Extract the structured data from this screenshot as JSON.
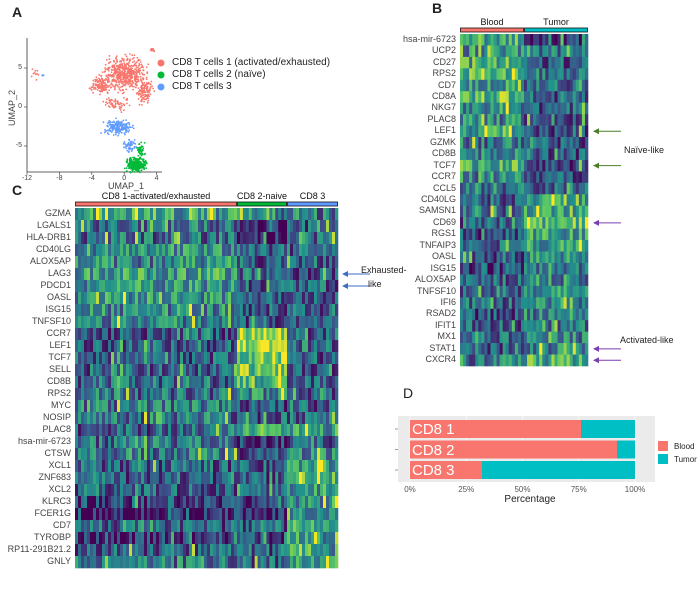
{
  "panels": {
    "a": "A",
    "b": "B",
    "c": "C",
    "d": "D"
  },
  "chart_data": [
    {
      "type": "scatter",
      "panel": "A",
      "xlabel": "UMAP_1",
      "ylabel": "UMAP_2",
      "xticks": [
        -12,
        -8,
        -4,
        0,
        4
      ],
      "yticks": [
        5,
        0,
        -5
      ],
      "xlim": [
        -12,
        5
      ],
      "ylim": [
        -8.5,
        8.5
      ],
      "legend": [
        "CD8 T cells 1 (activated/exhausted)",
        "CD8 T cells 2 (naïve)",
        "CD8 T cells 3"
      ],
      "legend_position": "right",
      "colors": [
        "#f8766d",
        "#00ba38",
        "#619cff"
      ],
      "clusters": [
        {
          "name": "CD8 T cells 1 (activated/exhausted)",
          "blobs": [
            [
              0,
              4.2,
              2.4,
              2.0,
              520
            ],
            [
              -3,
              2.8,
              1.1,
              0.9,
              120
            ],
            [
              2.5,
              2.0,
              0.9,
              1.6,
              120
            ],
            [
              -1,
              0.5,
              1.5,
              0.9,
              60
            ],
            [
              -11,
              4.3,
              0.4,
              0.6,
              10
            ],
            [
              3.5,
              7.3,
              0.3,
              0.3,
              12
            ]
          ]
        },
        {
          "name": "CD8 T cells 2 (naïve)",
          "blobs": [
            [
              1.5,
              -7.4,
              1.1,
              0.8,
              300
            ],
            [
              2.0,
              -5.5,
              0.5,
              0.9,
              50
            ]
          ]
        },
        {
          "name": "CD8 T cells 3",
          "blobs": [
            [
              -0.7,
              -2.6,
              1.6,
              0.9,
              200
            ],
            [
              0.7,
              -5.0,
              0.8,
              0.7,
              60
            ],
            [
              -10.1,
              4.1,
              0.2,
              0.2,
              3
            ]
          ]
        }
      ]
    },
    {
      "type": "heatmap",
      "panel": "B",
      "groups": [
        {
          "name": "Blood",
          "color": "#f8766d"
        },
        {
          "name": "Tumor",
          "color": "#00bfc4"
        }
      ],
      "genes": [
        "hsa-mir-6723",
        "UCP2",
        "CD27",
        "RPS2",
        "CD7",
        "CD8A",
        "NKG7",
        "PLAC8",
        "LEF1",
        "GZMK",
        "CD8B",
        "TCF7",
        "CCR7",
        "CCL5",
        "CD40LG",
        "SAMSN1",
        "CD69",
        "RGS1",
        "TNFAIP3",
        "OASL",
        "ISG15",
        "ALOX5AP",
        "TNFSF10",
        "IFI6",
        "RSAD2",
        "IFIT1",
        "MX1",
        "STAT1",
        "CXCR4"
      ],
      "levels": [
        [
          0.6,
          0.15
        ],
        [
          0.45,
          0.35
        ],
        [
          0.6,
          0.3
        ],
        [
          0.7,
          0.4
        ],
        [
          0.5,
          0.35
        ],
        [
          0.7,
          0.3
        ],
        [
          0.5,
          0.3
        ],
        [
          0.45,
          0.25
        ],
        [
          0.55,
          0.25
        ],
        [
          0.4,
          0.3
        ],
        [
          0.45,
          0.3
        ],
        [
          0.6,
          0.25
        ],
        [
          0.45,
          0.25
        ],
        [
          0.4,
          0.35
        ],
        [
          0.3,
          0.6
        ],
        [
          0.35,
          0.5
        ],
        [
          0.3,
          0.7
        ],
        [
          0.25,
          0.55
        ],
        [
          0.3,
          0.55
        ],
        [
          0.3,
          0.5
        ],
        [
          0.25,
          0.45
        ],
        [
          0.3,
          0.45
        ],
        [
          0.3,
          0.5
        ],
        [
          0.35,
          0.45
        ],
        [
          0.25,
          0.45
        ],
        [
          0.3,
          0.4
        ],
        [
          0.3,
          0.45
        ],
        [
          0.3,
          0.45
        ],
        [
          0.4,
          0.6
        ]
      ],
      "arrows": [
        {
          "gene": "LEF1",
          "color": "#4a7f2a"
        },
        {
          "gene": "TCF7",
          "color": "#4a7f2a"
        },
        {
          "gene": "CD69",
          "color": "#7a3fb0"
        },
        {
          "gene": "STAT1",
          "color": "#7a3fb0"
        },
        {
          "gene": "CXCR4",
          "color": "#7a3fb0"
        }
      ],
      "annotations": [
        "Naïve-like",
        "Activated-like"
      ]
    },
    {
      "type": "heatmap",
      "panel": "C",
      "groups": [
        {
          "name": "CD8 1-activated/exhausted",
          "color": "#f8766d"
        },
        {
          "name": "CD8 2-naive",
          "color": "#00ba38"
        },
        {
          "name": "CD8 3",
          "color": "#619cff"
        }
      ],
      "genes": [
        "GZMA",
        "LGALS1",
        "HLA-DRB1",
        "CD40LG",
        "ALOX5AP",
        "LAG3",
        "PDCD1",
        "OASL",
        "ISG15",
        "TNFSF10",
        "CCR7",
        "LEF1",
        "TCF7",
        "SELL",
        "CD8B",
        "RPS2",
        "MYC",
        "NOSIP",
        "PLAC8",
        "hsa-mir-6723",
        "CTSW",
        "XCL1",
        "ZNF683",
        "XCL2",
        "KLRC3",
        "FCER1G",
        "CD7",
        "TYROBP",
        "RP11-291B21.2",
        "GNLY"
      ],
      "levels": [
        [
          0.55,
          0.45,
          0.4
        ],
        [
          0.4,
          0.05,
          0.3
        ],
        [
          0.35,
          0.1,
          0.3
        ],
        [
          0.5,
          0.3,
          0.3
        ],
        [
          0.45,
          0.3,
          0.3
        ],
        [
          0.55,
          0.3,
          0.3
        ],
        [
          0.5,
          0.3,
          0.3
        ],
        [
          0.5,
          0.3,
          0.3
        ],
        [
          0.45,
          0.3,
          0.3
        ],
        [
          0.45,
          0.3,
          0.3
        ],
        [
          0.3,
          0.85,
          0.3
        ],
        [
          0.3,
          0.85,
          0.35
        ],
        [
          0.3,
          0.8,
          0.3
        ],
        [
          0.3,
          0.75,
          0.3
        ],
        [
          0.35,
          0.6,
          0.3
        ],
        [
          0.35,
          0.45,
          0.3
        ],
        [
          0.4,
          0.25,
          0.3
        ],
        [
          0.35,
          0.3,
          0.3
        ],
        [
          0.3,
          0.5,
          0.55
        ],
        [
          0.35,
          0.15,
          0.3
        ],
        [
          0.4,
          0.3,
          0.45
        ],
        [
          0.3,
          0.3,
          0.55
        ],
        [
          0.3,
          0.3,
          0.6
        ],
        [
          0.3,
          0.3,
          0.55
        ],
        [
          0.2,
          0.2,
          0.5
        ],
        [
          0.1,
          0.1,
          0.45
        ],
        [
          0.3,
          0.3,
          0.55
        ],
        [
          0.15,
          0.15,
          0.5
        ],
        [
          0.3,
          0.3,
          0.55
        ],
        [
          0.4,
          0.3,
          0.55
        ]
      ],
      "arrows": [
        {
          "gene": "LAG3",
          "color": "#3b6fc4"
        },
        {
          "gene": "PDCD1",
          "color": "#3b6fc4"
        }
      ],
      "annotations": [
        "Exhausted-",
        "like"
      ]
    },
    {
      "type": "bar",
      "panel": "D",
      "orientation": "horizontal",
      "stacked": true,
      "categories": [
        "CD8 1",
        "CD8 2",
        "CD8 3"
      ],
      "series": [
        {
          "name": "Blood",
          "color": "#f8766d",
          "values": [
            76,
            92,
            32
          ]
        },
        {
          "name": "Tumor",
          "color": "#00bfc4",
          "values": [
            24,
            8,
            68
          ]
        }
      ],
      "xlabel": "Percentage",
      "xticks": [
        "0%",
        "25%",
        "50%",
        "75%",
        "100%"
      ],
      "xlim": [
        0,
        100
      ],
      "legend_position": "right"
    }
  ]
}
